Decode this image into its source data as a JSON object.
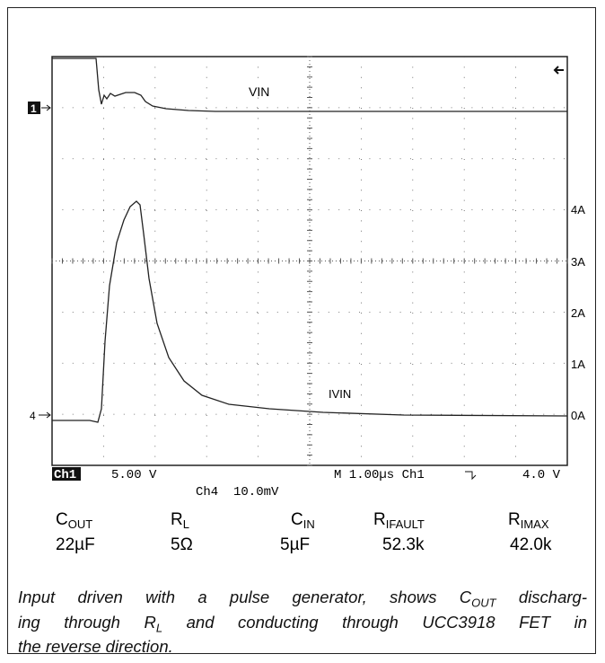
{
  "scope": {
    "trace_labels": [
      "VIN",
      "IVIN"
    ],
    "right_scale": [
      "4A",
      "3A",
      "2A",
      "1A",
      "0A"
    ],
    "channel_markers": [
      "1",
      "4"
    ],
    "status_row": {
      "ch1": "Ch1",
      "ch1_scale": "5.00 V",
      "timebase": "M 1.00µs Ch1",
      "trigger_level": "4.0 V",
      "ch4_scale": "Ch4  10.0mV"
    }
  },
  "table": {
    "headers": [
      {
        "symbol": "C",
        "sub": "OUT"
      },
      {
        "symbol": "R",
        "sub": "L"
      },
      {
        "symbol": "C",
        "sub": "IN"
      },
      {
        "symbol": "R",
        "sub": "IFAULT"
      },
      {
        "symbol": "R",
        "sub": "IMAX"
      }
    ],
    "values": [
      "22µF",
      "5Ω",
      "5µF",
      "52.3k",
      "42.0k"
    ]
  },
  "caption": {
    "lines": [
      [
        "Input driven with a pulse generator, shows C",
        "OUT",
        " discharg-"
      ],
      [
        "ing through R",
        "L",
        " and conducting through UCC3918 FET in"
      ],
      [
        "the reverse direction."
      ]
    ]
  }
}
